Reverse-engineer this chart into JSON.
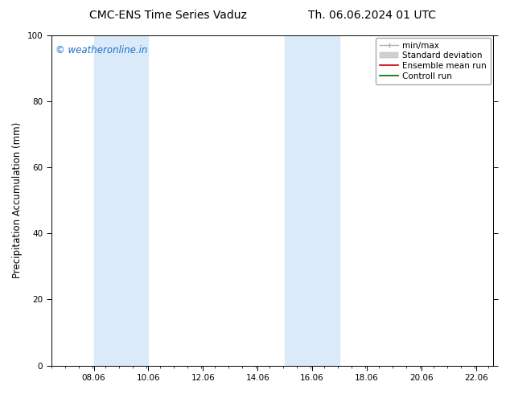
{
  "title_left": "CMC-ENS Time Series Vaduz",
  "title_right": "Th. 06.06.2024 01 UTC",
  "ylabel": "Precipitation Accumulation (mm)",
  "ylim": [
    0,
    100
  ],
  "xlim_start": 6.5,
  "xlim_end": 22.7,
  "xtick_values": [
    8.06,
    10.06,
    12.06,
    14.06,
    16.06,
    18.06,
    20.06,
    22.06
  ],
  "xtick_labels": [
    "08.06",
    "10.06",
    "12.06",
    "14.06",
    "16.06",
    "18.06",
    "20.06",
    "22.06"
  ],
  "yticks": [
    0,
    20,
    40,
    60,
    80,
    100
  ],
  "watermark": "© weatheronline.in",
  "watermark_color": "#1a6fcc",
  "bg_color": "#ffffff",
  "plot_bg_color": "#ffffff",
  "shaded_regions": [
    {
      "x_start": 8.06,
      "x_end": 10.06,
      "color": "#daeaf8"
    },
    {
      "x_start": 15.06,
      "x_end": 17.06,
      "color": "#daeaf8"
    }
  ],
  "title_fontsize": 10,
  "tick_fontsize": 7.5,
  "label_fontsize": 8.5,
  "watermark_fontsize": 8.5,
  "legend_fontsize": 7.5
}
